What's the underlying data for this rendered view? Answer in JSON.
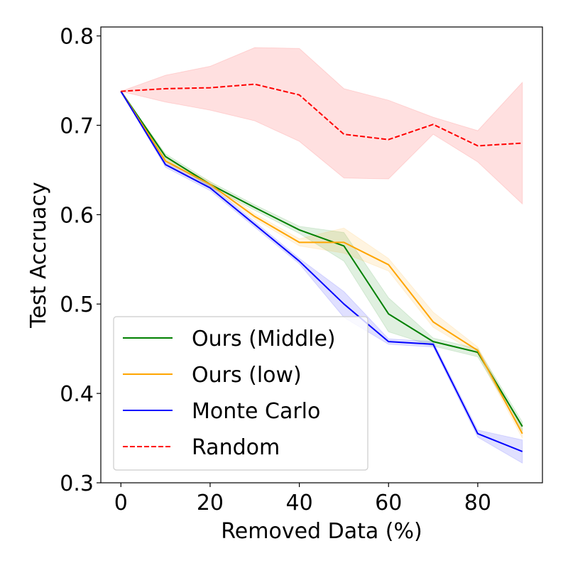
{
  "chart_data": {
    "type": "line",
    "title": "",
    "xlabel": "Removed Data (%)",
    "ylabel": "Test Accruacy",
    "xlim": [
      -4.5,
      94.5
    ],
    "ylim": [
      0.3,
      0.81
    ],
    "xticks": [
      0,
      20,
      40,
      60,
      80
    ],
    "xtick_labels": [
      "0",
      "20",
      "40",
      "60",
      "80"
    ],
    "yticks": [
      0.3,
      0.4,
      0.5,
      0.6,
      0.7,
      0.8
    ],
    "ytick_labels": [
      "0.3",
      "0.4",
      "0.5",
      "0.6",
      "0.7",
      "0.8"
    ],
    "grid": false,
    "legend_position": "lower-left",
    "x": [
      0,
      10,
      20,
      30,
      40,
      50,
      60,
      70,
      80,
      90
    ],
    "series": [
      {
        "name": "Ours (Middle)",
        "color": "#008000",
        "dashed": false,
        "values": [
          0.738,
          0.665,
          0.634,
          0.608,
          0.583,
          0.565,
          0.489,
          0.458,
          0.446,
          0.363
        ],
        "lower": [
          0.738,
          0.662,
          0.631,
          0.605,
          0.579,
          0.548,
          0.469,
          0.453,
          0.441,
          0.358
        ],
        "upper": [
          0.738,
          0.668,
          0.637,
          0.611,
          0.587,
          0.58,
          0.507,
          0.462,
          0.45,
          0.368
        ]
      },
      {
        "name": "Ours (low)",
        "color": "#FFA500",
        "dashed": false,
        "values": [
          0.738,
          0.66,
          0.634,
          0.598,
          0.569,
          0.569,
          0.544,
          0.48,
          0.448,
          0.355
        ],
        "lower": [
          0.738,
          0.657,
          0.631,
          0.595,
          0.565,
          0.557,
          0.537,
          0.474,
          0.444,
          0.35
        ],
        "upper": [
          0.738,
          0.663,
          0.637,
          0.601,
          0.573,
          0.585,
          0.551,
          0.491,
          0.452,
          0.36
        ]
      },
      {
        "name": "Monte Carlo",
        "color": "#0000FF",
        "dashed": false,
        "values": [
          0.738,
          0.656,
          0.63,
          0.589,
          0.548,
          0.5,
          0.458,
          0.455,
          0.355,
          0.335
        ],
        "lower": [
          0.738,
          0.653,
          0.627,
          0.586,
          0.545,
          0.485,
          0.455,
          0.452,
          0.351,
          0.322
        ],
        "upper": [
          0.738,
          0.659,
          0.633,
          0.592,
          0.551,
          0.514,
          0.461,
          0.458,
          0.359,
          0.348
        ]
      },
      {
        "name": "Random",
        "color": "#FF0000",
        "dashed": true,
        "values": [
          0.738,
          0.741,
          0.742,
          0.746,
          0.734,
          0.69,
          0.684,
          0.701,
          0.677,
          0.68
        ],
        "lower": [
          0.738,
          0.726,
          0.717,
          0.705,
          0.682,
          0.641,
          0.64,
          0.69,
          0.659,
          0.612
        ],
        "upper": [
          0.738,
          0.756,
          0.766,
          0.787,
          0.786,
          0.741,
          0.728,
          0.709,
          0.694,
          0.748
        ]
      }
    ]
  }
}
